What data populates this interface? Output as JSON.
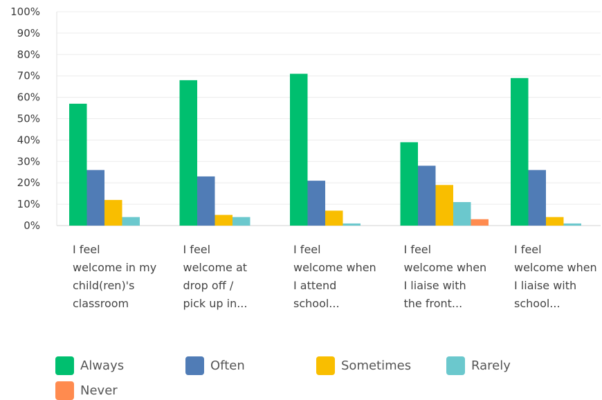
{
  "chart_data": {
    "type": "bar",
    "categories": [
      [
        "I feel",
        "welcome in my",
        "child(ren)'s",
        "classroom"
      ],
      [
        "I feel",
        "welcome at",
        "drop off /",
        "pick up in..."
      ],
      [
        "I feel",
        "welcome when",
        "I attend",
        "school..."
      ],
      [
        "I feel",
        "welcome when",
        "I liaise with",
        "the front..."
      ],
      [
        "I feel",
        "welcome when",
        "I liaise with",
        "school..."
      ]
    ],
    "series": [
      {
        "name": "Always",
        "color": "#00bf6f",
        "values": [
          57,
          68,
          71,
          39,
          69
        ]
      },
      {
        "name": "Often",
        "color": "#507cb6",
        "values": [
          26,
          23,
          21,
          28,
          26
        ]
      },
      {
        "name": "Sometimes",
        "color": "#f9be00",
        "values": [
          12,
          5,
          7,
          19,
          4
        ]
      },
      {
        "name": "Rarely",
        "color": "#6bc8cd",
        "values": [
          4,
          4,
          1,
          11,
          1
        ]
      },
      {
        "name": "Never",
        "color": "#ff8b4f",
        "values": [
          0,
          0,
          0,
          3,
          0
        ]
      }
    ],
    "yticks": [
      "0%",
      "10%",
      "20%",
      "30%",
      "40%",
      "50%",
      "60%",
      "70%",
      "80%",
      "90%",
      "100%"
    ],
    "ylim": [
      0,
      100
    ],
    "grid": true,
    "legend_position": "bottom"
  }
}
